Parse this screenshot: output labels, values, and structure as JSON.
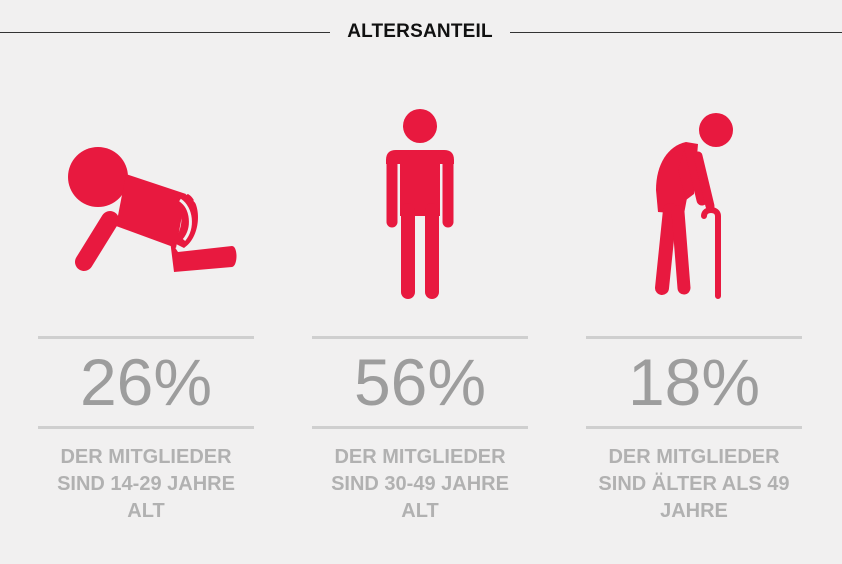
{
  "header": {
    "title": "ALTERSANTEIL"
  },
  "colors": {
    "accent": "#e8193f",
    "number": "#9d9d9d",
    "text": "#b1b1b1",
    "rule": "#cfcfcf",
    "background": "#f1f0f0"
  },
  "chart_data": {
    "type": "table",
    "title": "ALTERSANTEIL",
    "categories": [
      "14-29",
      "30-49",
      "49+"
    ],
    "values": [
      26,
      56,
      18
    ],
    "items": [
      {
        "icon": "crawling-baby-icon",
        "percent": "26%",
        "value": 26,
        "lines": [
          "DER MITGLIEDER",
          "SIND 14-29 JAHRE",
          "ALT"
        ]
      },
      {
        "icon": "standing-person-icon",
        "percent": "56%",
        "value": 56,
        "lines": [
          "DER MITGLIEDER",
          "SIND 30-49 JAHRE",
          "ALT"
        ]
      },
      {
        "icon": "elderly-person-with-cane-icon",
        "percent": "18%",
        "value": 18,
        "lines": [
          "DER MITGLIEDER",
          "SIND ÄLTER ALS 49",
          "JAHRE"
        ]
      }
    ]
  }
}
